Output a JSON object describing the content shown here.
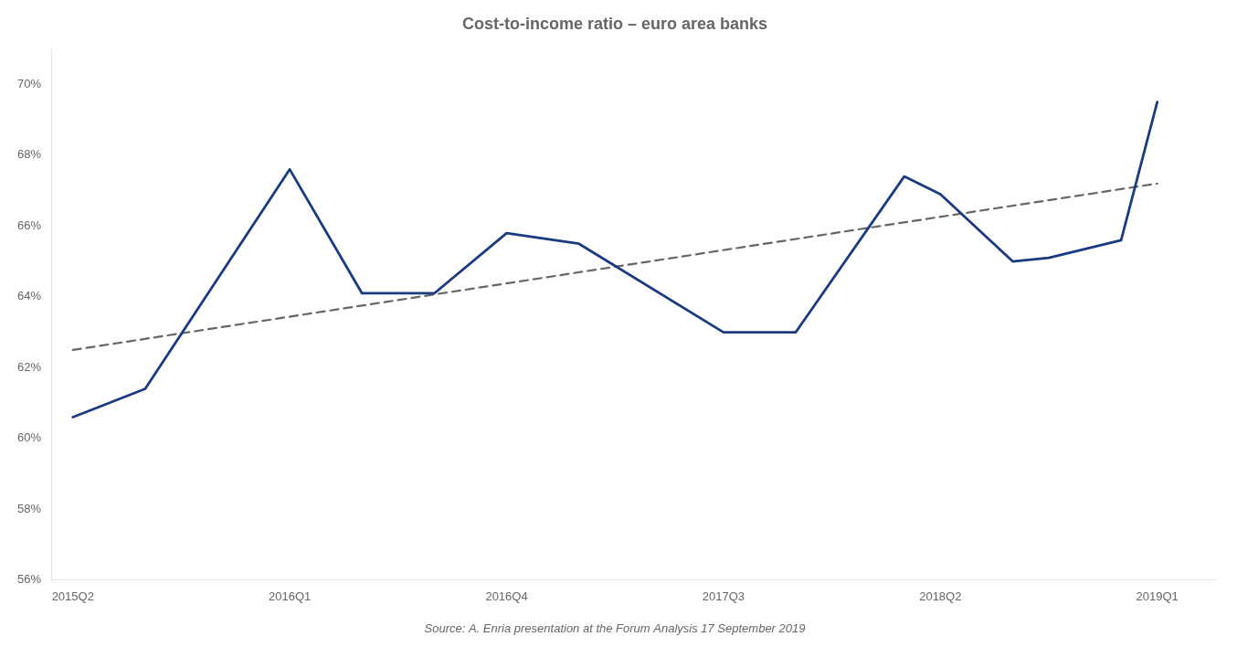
{
  "chart_data": {
    "type": "line",
    "title": "Cost-to-income ratio – euro area banks",
    "annotations": [
      "Source: A. Enria presentation at the Forum Analysis 17 September 2019"
    ],
    "series": [
      {
        "color": "#1a3a82",
        "line_style": "solid",
        "x": [
          0,
          1,
          3,
          4,
          5,
          6,
          7,
          9,
          10,
          11.5,
          12,
          13,
          13.5,
          14.5,
          15
        ],
        "values": [
          0.606,
          0.614,
          0.676,
          0.641,
          0.641,
          0.658,
          0.655,
          0.63,
          0.63,
          0.674,
          0.669,
          0.65,
          0.651,
          0.656,
          0.695
        ]
      },
      {
        "color": "#666666",
        "line_style": "dashed",
        "x": [
          0,
          15
        ],
        "values": [
          0.625,
          0.672
        ]
      }
    ],
    "xlim": [
      -0.3,
      15.8
    ],
    "xticks": [
      {
        "value": 0,
        "label": "2015Q2"
      },
      {
        "value": 3,
        "label": "2016Q1"
      },
      {
        "value": 6,
        "label": "2016Q4"
      },
      {
        "value": 9,
        "label": "2017Q3"
      },
      {
        "value": 12,
        "label": "2018Q2"
      },
      {
        "value": 15,
        "label": "2019Q1"
      }
    ],
    "ylim": [
      0.56,
      0.71
    ],
    "yticks": [
      {
        "value": 0.56,
        "label": "56%"
      },
      {
        "value": 0.58,
        "label": "58%"
      },
      {
        "value": 0.6,
        "label": "60%"
      },
      {
        "value": 0.62,
        "label": "62%"
      },
      {
        "value": 0.64,
        "label": "64%"
      },
      {
        "value": 0.66,
        "label": "66%"
      },
      {
        "value": 0.68,
        "label": "68%"
      },
      {
        "value": 0.7,
        "label": "70%"
      }
    ],
    "grid": false
  }
}
